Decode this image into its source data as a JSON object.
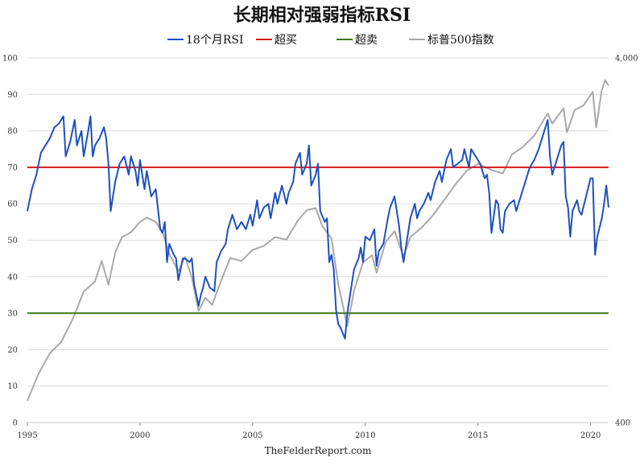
{
  "chart_data": {
    "type": "line",
    "title": "长期相对强弱指标RSI",
    "source": "TheFelderReport.com",
    "legend": [
      {
        "label": "18个月RSI",
        "color": "#1f4fbf"
      },
      {
        "label": "超买",
        "color": "#d7191c"
      },
      {
        "label": "超卖",
        "color": "#3a7d1e"
      },
      {
        "label": "标普500指数",
        "color": "#a9a9a9"
      }
    ],
    "xlim": [
      1995,
      2020.8
    ],
    "x_ticks": [
      "1995",
      "2000",
      "2005",
      "2010",
      "2015",
      "2020"
    ],
    "y_left": {
      "min": 0,
      "max": 100,
      "ticks": [
        "0",
        "10",
        "20",
        "30",
        "40",
        "50",
        "60",
        "70",
        "80",
        "90",
        "100"
      ]
    },
    "y_right": {
      "scale": "log",
      "min": 400,
      "max": 4000,
      "ticks": [
        "400",
        "4,000"
      ]
    },
    "grid": "horizontal",
    "overbought_level": 70,
    "oversold_level": 30,
    "series": [
      {
        "name": "18个月RSI",
        "axis": "left",
        "color": "#1f4fbf",
        "points": [
          [
            1995.0,
            58
          ],
          [
            1995.2,
            64
          ],
          [
            1995.4,
            68
          ],
          [
            1995.6,
            74
          ],
          [
            1995.8,
            76
          ],
          [
            1996.0,
            78
          ],
          [
            1996.2,
            81
          ],
          [
            1996.4,
            82
          ],
          [
            1996.6,
            84
          ],
          [
            1996.7,
            73
          ],
          [
            1996.9,
            77
          ],
          [
            1997.1,
            83
          ],
          [
            1997.2,
            76
          ],
          [
            1997.4,
            80
          ],
          [
            1997.5,
            73
          ],
          [
            1997.7,
            80
          ],
          [
            1997.8,
            84
          ],
          [
            1997.9,
            73
          ],
          [
            1998.0,
            76
          ],
          [
            1998.2,
            78
          ],
          [
            1998.4,
            81
          ],
          [
            1998.5,
            78
          ],
          [
            1998.6,
            71
          ],
          [
            1998.7,
            58
          ],
          [
            1998.9,
            66
          ],
          [
            1999.1,
            71
          ],
          [
            1999.3,
            73
          ],
          [
            1999.5,
            68
          ],
          [
            1999.6,
            73
          ],
          [
            1999.8,
            69
          ],
          [
            1999.9,
            65
          ],
          [
            2000.0,
            72
          ],
          [
            2000.2,
            64
          ],
          [
            2000.3,
            69
          ],
          [
            2000.5,
            62
          ],
          [
            2000.7,
            64
          ],
          [
            2000.9,
            53
          ],
          [
            2001.0,
            52
          ],
          [
            2001.1,
            55
          ],
          [
            2001.2,
            44
          ],
          [
            2001.3,
            49
          ],
          [
            2001.5,
            46
          ],
          [
            2001.6,
            45
          ],
          [
            2001.7,
            39
          ],
          [
            2001.9,
            45
          ],
          [
            2002.0,
            45
          ],
          [
            2002.2,
            44
          ],
          [
            2002.3,
            45
          ],
          [
            2002.4,
            38
          ],
          [
            2002.5,
            35
          ],
          [
            2002.6,
            32
          ],
          [
            2002.7,
            35
          ],
          [
            2002.8,
            37
          ],
          [
            2002.9,
            40
          ],
          [
            2003.1,
            37
          ],
          [
            2003.3,
            36
          ],
          [
            2003.4,
            44
          ],
          [
            2003.6,
            47
          ],
          [
            2003.8,
            49
          ],
          [
            2003.9,
            53
          ],
          [
            2004.1,
            57
          ],
          [
            2004.3,
            53
          ],
          [
            2004.5,
            55
          ],
          [
            2004.7,
            53
          ],
          [
            2004.9,
            57
          ],
          [
            2005.0,
            54
          ],
          [
            2005.2,
            61
          ],
          [
            2005.3,
            56
          ],
          [
            2005.5,
            59
          ],
          [
            2005.7,
            60
          ],
          [
            2005.8,
            56
          ],
          [
            2006.0,
            63
          ],
          [
            2006.1,
            60
          ],
          [
            2006.3,
            65
          ],
          [
            2006.5,
            60
          ],
          [
            2006.6,
            63
          ],
          [
            2006.8,
            66
          ],
          [
            2006.9,
            71
          ],
          [
            2007.1,
            74
          ],
          [
            2007.2,
            68
          ],
          [
            2007.4,
            71
          ],
          [
            2007.5,
            76
          ],
          [
            2007.6,
            65
          ],
          [
            2007.8,
            68
          ],
          [
            2007.9,
            71
          ],
          [
            2008.0,
            58
          ],
          [
            2008.2,
            55
          ],
          [
            2008.3,
            56
          ],
          [
            2008.4,
            44
          ],
          [
            2008.5,
            46
          ],
          [
            2008.6,
            42
          ],
          [
            2008.7,
            31
          ],
          [
            2008.8,
            27
          ],
          [
            2008.9,
            26
          ],
          [
            2009.1,
            23
          ],
          [
            2009.2,
            30
          ],
          [
            2009.4,
            38
          ],
          [
            2009.5,
            42
          ],
          [
            2009.7,
            45
          ],
          [
            2009.8,
            48
          ],
          [
            2009.9,
            44
          ],
          [
            2010.0,
            51
          ],
          [
            2010.2,
            50
          ],
          [
            2010.4,
            53
          ],
          [
            2010.5,
            43
          ],
          [
            2010.6,
            47
          ],
          [
            2010.8,
            49
          ],
          [
            2011.0,
            56
          ],
          [
            2011.1,
            59
          ],
          [
            2011.3,
            62
          ],
          [
            2011.4,
            58
          ],
          [
            2011.5,
            54
          ],
          [
            2011.6,
            48
          ],
          [
            2011.7,
            44
          ],
          [
            2011.9,
            52
          ],
          [
            2012.0,
            56
          ],
          [
            2012.2,
            60
          ],
          [
            2012.3,
            56
          ],
          [
            2012.4,
            58
          ],
          [
            2012.6,
            60
          ],
          [
            2012.8,
            63
          ],
          [
            2012.9,
            61
          ],
          [
            2013.1,
            66
          ],
          [
            2013.3,
            69
          ],
          [
            2013.4,
            66
          ],
          [
            2013.6,
            72
          ],
          [
            2013.8,
            75
          ],
          [
            2013.9,
            70
          ],
          [
            2014.1,
            71
          ],
          [
            2014.3,
            72
          ],
          [
            2014.4,
            75
          ],
          [
            2014.6,
            70
          ],
          [
            2014.7,
            75
          ],
          [
            2014.9,
            73
          ],
          [
            2015.1,
            71
          ],
          [
            2015.3,
            67
          ],
          [
            2015.4,
            68
          ],
          [
            2015.5,
            63
          ],
          [
            2015.6,
            52
          ],
          [
            2015.8,
            61
          ],
          [
            2015.9,
            60
          ],
          [
            2016.0,
            53
          ],
          [
            2016.1,
            52
          ],
          [
            2016.2,
            58
          ],
          [
            2016.4,
            60
          ],
          [
            2016.6,
            61
          ],
          [
            2016.7,
            58
          ],
          [
            2016.9,
            62
          ],
          [
            2017.1,
            66
          ],
          [
            2017.3,
            70
          ],
          [
            2017.5,
            72
          ],
          [
            2017.7,
            75
          ],
          [
            2017.9,
            79
          ],
          [
            2018.1,
            83
          ],
          [
            2018.2,
            73
          ],
          [
            2018.3,
            68
          ],
          [
            2018.5,
            72
          ],
          [
            2018.7,
            76
          ],
          [
            2018.8,
            77
          ],
          [
            2018.9,
            62
          ],
          [
            2019.0,
            59
          ],
          [
            2019.1,
            51
          ],
          [
            2019.2,
            58
          ],
          [
            2019.4,
            61
          ],
          [
            2019.5,
            58
          ],
          [
            2019.6,
            57
          ],
          [
            2019.8,
            62
          ],
          [
            2020.0,
            67
          ],
          [
            2020.1,
            67
          ],
          [
            2020.2,
            46
          ],
          [
            2020.3,
            51
          ],
          [
            2020.5,
            56
          ],
          [
            2020.6,
            60
          ],
          [
            2020.7,
            65
          ],
          [
            2020.8,
            59
          ]
        ]
      },
      {
        "name": "标普500指数",
        "axis": "right",
        "color": "#a9a9a9",
        "points": [
          [
            1995.0,
            459
          ],
          [
            1995.5,
            545
          ],
          [
            1996.0,
            620
          ],
          [
            1996.5,
            665
          ],
          [
            1997.0,
            766
          ],
          [
            1997.5,
            915
          ],
          [
            1998.0,
            975
          ],
          [
            1998.3,
            1110
          ],
          [
            1998.6,
            955
          ],
          [
            1998.9,
            1170
          ],
          [
            1999.2,
            1290
          ],
          [
            1999.6,
            1330
          ],
          [
            2000.0,
            1420
          ],
          [
            2000.3,
            1460
          ],
          [
            2000.7,
            1420
          ],
          [
            2001.0,
            1330
          ],
          [
            2001.3,
            1160
          ],
          [
            2001.7,
            1040
          ],
          [
            2002.0,
            1140
          ],
          [
            2002.3,
            1000
          ],
          [
            2002.6,
            810
          ],
          [
            2002.9,
            880
          ],
          [
            2003.2,
            840
          ],
          [
            2003.6,
            980
          ],
          [
            2004.0,
            1130
          ],
          [
            2004.5,
            1110
          ],
          [
            2005.0,
            1190
          ],
          [
            2005.5,
            1220
          ],
          [
            2006.0,
            1290
          ],
          [
            2006.5,
            1270
          ],
          [
            2007.0,
            1430
          ],
          [
            2007.4,
            1530
          ],
          [
            2007.8,
            1550
          ],
          [
            2008.1,
            1380
          ],
          [
            2008.5,
            1280
          ],
          [
            2008.8,
            960
          ],
          [
            2009.2,
            735
          ],
          [
            2009.5,
            920
          ],
          [
            2009.9,
            1100
          ],
          [
            2010.3,
            1150
          ],
          [
            2010.5,
            1030
          ],
          [
            2010.9,
            1250
          ],
          [
            2011.3,
            1340
          ],
          [
            2011.7,
            1140
          ],
          [
            2012.0,
            1290
          ],
          [
            2012.5,
            1370
          ],
          [
            2013.0,
            1480
          ],
          [
            2013.5,
            1630
          ],
          [
            2014.0,
            1800
          ],
          [
            2014.5,
            1960
          ],
          [
            2015.0,
            2050
          ],
          [
            2015.6,
            1970
          ],
          [
            2016.1,
            1930
          ],
          [
            2016.5,
            2170
          ],
          [
            2017.0,
            2280
          ],
          [
            2017.5,
            2450
          ],
          [
            2018.1,
            2820
          ],
          [
            2018.3,
            2640
          ],
          [
            2018.8,
            2910
          ],
          [
            2018.95,
            2500
          ],
          [
            2019.3,
            2880
          ],
          [
            2019.7,
            2970
          ],
          [
            2020.1,
            3230
          ],
          [
            2020.25,
            2580
          ],
          [
            2020.5,
            3270
          ],
          [
            2020.65,
            3480
          ],
          [
            2020.8,
            3360
          ]
        ]
      }
    ]
  }
}
